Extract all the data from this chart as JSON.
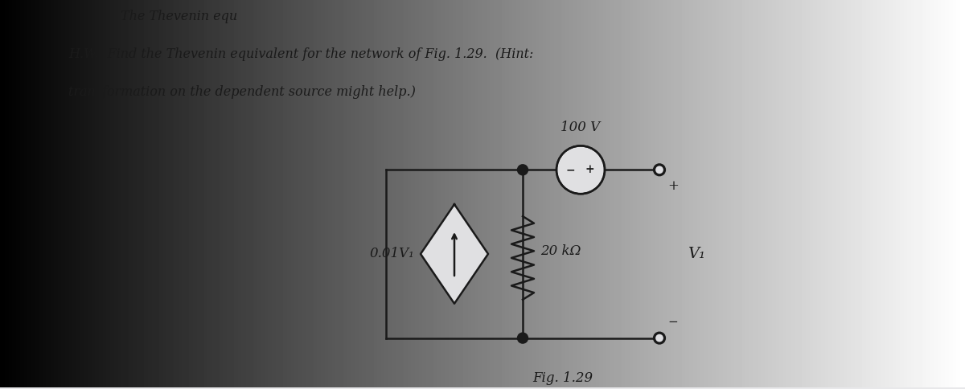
{
  "bg_left_color": "#b0b8c4",
  "bg_right_color": "#e8e8ea",
  "page_color": "#e8e8ea",
  "text_color": "#1a1a1a",
  "title_line": "The Thevenin equ",
  "hw_line1": "H.W.: Find the Thevenin equivalent for the network of Fig. 1.29.  (Hint:",
  "hw_line2": "transformation on the dependent source might help.)",
  "fig_label": "Fig. 1.29",
  "circuit": {
    "dep_source_label": "0.01V₁",
    "resistor_label": "20 kΩ",
    "voltage_label": "100 V",
    "v1_label": "V₁",
    "plus_label": "+",
    "minus_label": "−"
  }
}
